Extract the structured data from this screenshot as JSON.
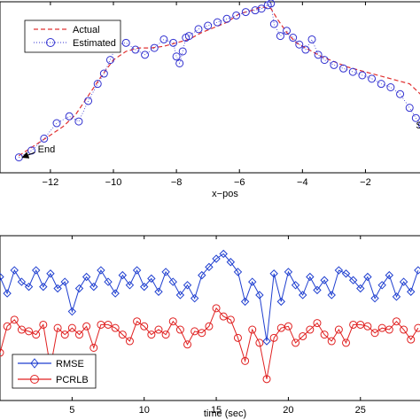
{
  "chart_data": [
    {
      "type": "scatter",
      "xlabel": "x−pos",
      "ylabel": "",
      "xlim": [
        -13.6,
        -0.1
      ],
      "ylim": [
        0,
        10
      ],
      "x_ticks": [
        "−12",
        "−10",
        "−8",
        "−6",
        "−4",
        "−2"
      ],
      "x_tick_values": [
        -12,
        -10,
        -8,
        -6,
        -4,
        -2
      ],
      "grid": false,
      "legend_position": "top-left",
      "annotations": [
        {
          "text": "End",
          "x": -12.4,
          "y": 1.2,
          "arrow_to": [
            -13.0,
            0.9
          ]
        },
        {
          "text": "Sta",
          "x": -0.4,
          "y": 2.6
        }
      ],
      "series": [
        {
          "name": "Actual",
          "style": "dashed",
          "color": "#e03030",
          "x": [
            -13.0,
            -12.5,
            -12.0,
            -11.6,
            -11.2,
            -10.8,
            -10.4,
            -10.0,
            -9.6,
            -9.2,
            -8.8,
            -8.4,
            -8.0,
            -7.6,
            -7.2,
            -6.8,
            -6.4,
            -6.0,
            -5.6,
            -5.3,
            -5.0,
            -4.8,
            -4.5,
            -4.2,
            -3.8,
            -3.4,
            -3.0,
            -2.6,
            -2.2,
            -1.8,
            -1.4,
            -1.0,
            -0.6,
            -0.2
          ],
          "y": [
            1.0,
            1.6,
            2.2,
            2.7,
            3.4,
            4.5,
            5.6,
            6.6,
            7.1,
            7.3,
            7.3,
            7.4,
            7.6,
            7.8,
            8.2,
            8.5,
            8.8,
            9.3,
            9.5,
            9.7,
            9.6,
            9.0,
            8.2,
            7.6,
            7.2,
            6.8,
            6.5,
            6.2,
            6.0,
            5.8,
            5.6,
            5.4,
            5.2,
            4.5
          ]
        },
        {
          "name": "Estimated",
          "style": "dotted-circle",
          "color": "#3030d0",
          "x": [
            -13.0,
            -12.6,
            -12.2,
            -11.8,
            -11.4,
            -11.1,
            -10.8,
            -10.5,
            -10.3,
            -10.1,
            -9.9,
            -9.6,
            -9.3,
            -9.0,
            -8.7,
            -8.4,
            -8.1,
            -8.0,
            -7.9,
            -7.8,
            -7.7,
            -7.6,
            -7.3,
            -7.0,
            -6.7,
            -6.4,
            -6.1,
            -5.8,
            -5.5,
            -5.3,
            -5.1,
            -5.0,
            -4.9,
            -4.7,
            -4.5,
            -4.3,
            -4.1,
            -3.9,
            -3.7,
            -3.5,
            -3.3,
            -3.0,
            -2.7,
            -2.4,
            -2.1,
            -1.8,
            -1.5,
            -1.2,
            -0.9,
            -0.6,
            -0.4,
            -0.2
          ],
          "y": [
            0.9,
            1.3,
            2.0,
            2.9,
            3.3,
            3.0,
            4.2,
            5.2,
            5.8,
            6.6,
            7.5,
            7.6,
            7.2,
            6.9,
            7.3,
            7.8,
            7.6,
            6.8,
            6.4,
            7.1,
            7.9,
            8.0,
            8.4,
            8.6,
            8.8,
            9.0,
            9.2,
            9.4,
            9.5,
            9.6,
            9.8,
            9.9,
            8.7,
            8.0,
            8.3,
            7.9,
            7.5,
            7.2,
            7.8,
            6.9,
            6.6,
            6.3,
            6.1,
            5.9,
            5.7,
            5.5,
            5.2,
            5.0,
            4.6,
            3.8,
            3.2,
            2.8
          ]
        }
      ]
    },
    {
      "type": "line",
      "xlabel": "time (sec)",
      "ylabel": "",
      "xlim": [
        0,
        29.5
      ],
      "ylim": [
        0,
        10
      ],
      "x_ticks": [
        "5",
        "10",
        "15",
        "20",
        "25"
      ],
      "x_tick_values": [
        5,
        10,
        15,
        20,
        25
      ],
      "grid": false,
      "legend_position": "bottom-left",
      "series": [
        {
          "name": "RMSE",
          "color": "#1f3fd0",
          "marker": "diamond",
          "x": [
            0,
            0.5,
            1,
            1.5,
            2,
            2.5,
            3,
            3.5,
            4,
            4.5,
            5,
            5.5,
            6,
            6.5,
            7,
            7.5,
            8,
            8.5,
            9,
            9.5,
            10,
            10.5,
            11,
            11.5,
            12,
            12.5,
            13,
            13.5,
            14,
            14.5,
            15,
            15.5,
            16,
            16.5,
            17,
            17.5,
            18,
            18.5,
            19,
            19.5,
            20,
            20.5,
            21,
            21.5,
            22,
            22.5,
            23,
            23.5,
            24,
            24.5,
            25,
            25.5,
            26,
            26.5,
            27,
            27.5,
            28,
            28.5,
            29
          ],
          "y": [
            7.5,
            6.5,
            7.9,
            7.2,
            6.9,
            7.9,
            6.9,
            7.7,
            6.8,
            7.2,
            5.4,
            6.8,
            7.5,
            6.9,
            7.9,
            7.2,
            6.5,
            7.6,
            7.0,
            7.9,
            6.9,
            7.4,
            6.6,
            7.8,
            7.2,
            6.4,
            7.0,
            6.2,
            7.6,
            8.1,
            8.6,
            8.9,
            8.4,
            7.8,
            6.0,
            7.2,
            6.4,
            3.6,
            7.7,
            6.0,
            7.8,
            7.0,
            6.4,
            7.5,
            6.7,
            7.3,
            6.4,
            7.9,
            7.7,
            7.3,
            6.8,
            7.5,
            6.2,
            7.0,
            7.6,
            6.3,
            7.2,
            6.6,
            7.9
          ]
        },
        {
          "name": "PCRLB",
          "color": "#e02020",
          "marker": "circle",
          "x": [
            0,
            0.5,
            1,
            1.5,
            2,
            2.5,
            3,
            3.5,
            4,
            4.5,
            5,
            5.5,
            6,
            6.5,
            7,
            7.5,
            8,
            8.5,
            9,
            9.5,
            10,
            10.5,
            11,
            11.5,
            12,
            12.5,
            13,
            13.5,
            14,
            14.5,
            15,
            15.5,
            16,
            16.5,
            17,
            17.5,
            18,
            18.5,
            19,
            19.5,
            20,
            20.5,
            21,
            21.5,
            22,
            22.5,
            23,
            23.5,
            24,
            24.5,
            25,
            25.5,
            26,
            26.5,
            27,
            27.5,
            28,
            28.5,
            29
          ],
          "y": [
            2.9,
            4.5,
            4.9,
            4.3,
            4.2,
            4.0,
            4.6,
            2.0,
            4.4,
            4.0,
            4.4,
            4.0,
            4.5,
            3.2,
            4.6,
            4.6,
            4.4,
            4.0,
            3.6,
            4.8,
            4.5,
            4.0,
            4.3,
            4.0,
            4.8,
            4.3,
            3.4,
            4.2,
            4.1,
            4.5,
            5.6,
            5.1,
            4.9,
            3.8,
            2.4,
            4.3,
            3.5,
            1.3,
            3.8,
            4.4,
            4.5,
            3.5,
            3.9,
            4.3,
            4.7,
            4.0,
            3.6,
            4.3,
            3.5,
            4.6,
            4.6,
            4.5,
            4.1,
            4.4,
            4.3,
            4.8,
            4.3,
            3.7,
            4.4
          ]
        }
      ]
    }
  ]
}
